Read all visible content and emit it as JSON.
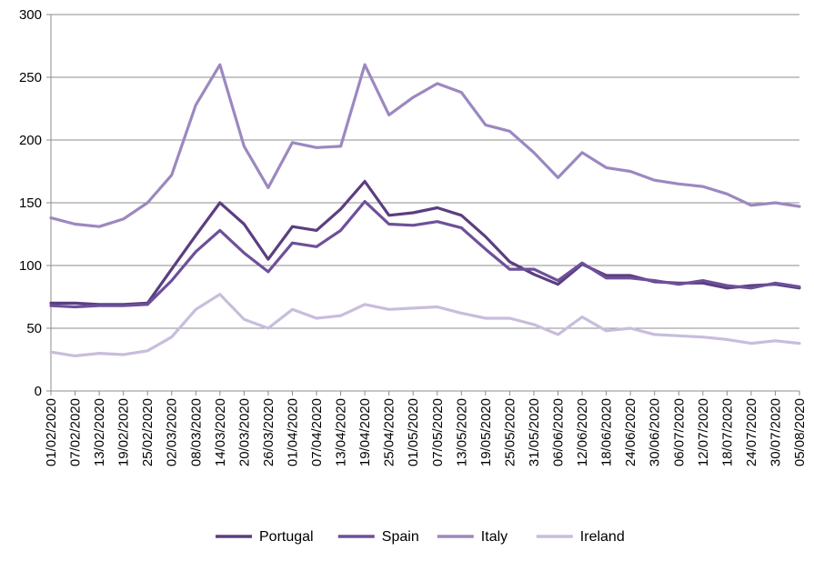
{
  "chart_data": {
    "type": "line",
    "title": "",
    "xlabel": "",
    "ylabel": "",
    "ylim": [
      0,
      300
    ],
    "yticks": [
      0,
      50,
      100,
      150,
      200,
      250,
      300
    ],
    "grid": "horizontal",
    "legend_position": "bottom",
    "x": [
      "01/02/2020",
      "07/02/2020",
      "13/02/2020",
      "19/02/2020",
      "25/02/2020",
      "02/03/2020",
      "08/03/2020",
      "14/03/2020",
      "20/03/2020",
      "26/03/2020",
      "01/04/2020",
      "07/04/2020",
      "13/04/2020",
      "19/04/2020",
      "25/04/2020",
      "01/05/2020",
      "07/05/2020",
      "13/05/2020",
      "19/05/2020",
      "25/05/2020",
      "31/05/2020",
      "06/06/2020",
      "12/06/2020",
      "18/06/2020",
      "24/06/2020",
      "30/06/2020",
      "06/07/2020",
      "12/07/2020",
      "18/07/2020",
      "24/07/2020",
      "30/07/2020",
      "05/08/2020"
    ],
    "series": [
      {
        "name": "Portugal",
        "color": "#5b3e80",
        "values": [
          70,
          70,
          69,
          69,
          70,
          97,
          124,
          150,
          133,
          105,
          131,
          128,
          145,
          167,
          140,
          142,
          146,
          140,
          123,
          103,
          93,
          85,
          101,
          92,
          92,
          87,
          86,
          86,
          82,
          84,
          85,
          82
        ]
      },
      {
        "name": "Spain",
        "color": "#6d509a",
        "values": [
          68,
          67,
          68,
          68,
          69,
          88,
          111,
          128,
          110,
          95,
          118,
          115,
          128,
          151,
          133,
          132,
          135,
          130,
          113,
          97,
          97,
          88,
          102,
          90,
          90,
          88,
          85,
          88,
          84,
          82,
          86,
          83
        ]
      },
      {
        "name": "Italy",
        "color": "#9c88c0",
        "values": [
          138,
          133,
          131,
          137,
          150,
          172,
          228,
          260,
          195,
          162,
          198,
          194,
          195,
          260,
          220,
          234,
          245,
          238,
          212,
          207,
          190,
          170,
          190,
          178,
          175,
          168,
          165,
          163,
          157,
          148,
          150,
          147
        ]
      },
      {
        "name": "Ireland",
        "color": "#c8bddc",
        "values": [
          31,
          28,
          30,
          29,
          32,
          43,
          65,
          77,
          57,
          50,
          65,
          58,
          60,
          69,
          65,
          66,
          67,
          62,
          58,
          58,
          53,
          45,
          59,
          48,
          50,
          45,
          44,
          43,
          41,
          38,
          40,
          38
        ]
      }
    ]
  }
}
